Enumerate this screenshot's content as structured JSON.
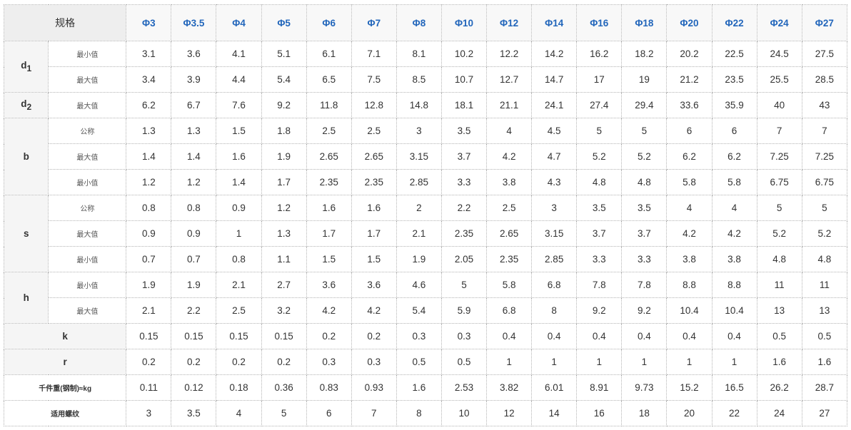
{
  "table": {
    "corner_label": "规格",
    "columns": [
      "Φ3",
      "Φ3.5",
      "Φ4",
      "Φ5",
      "Φ6",
      "Φ7",
      "Φ8",
      "Φ10",
      "Φ12",
      "Φ14",
      "Φ16",
      "Φ18",
      "Φ20",
      "Φ22",
      "Φ24",
      "Φ27"
    ],
    "groups": [
      {
        "param": "d",
        "sub": "1",
        "rows": [
          {
            "label": "最小值",
            "values": [
              "3.1",
              "3.6",
              "4.1",
              "5.1",
              "6.1",
              "7.1",
              "8.1",
              "10.2",
              "12.2",
              "14.2",
              "16.2",
              "18.2",
              "20.2",
              "22.5",
              "24.5",
              "27.5"
            ]
          },
          {
            "label": "最大值",
            "values": [
              "3.4",
              "3.9",
              "4.4",
              "5.4",
              "6.5",
              "7.5",
              "8.5",
              "10.7",
              "12.7",
              "14.7",
              "17",
              "19",
              "21.2",
              "23.5",
              "25.5",
              "28.5"
            ]
          }
        ]
      },
      {
        "param": "d",
        "sub": "2",
        "rows": [
          {
            "label": "最大值",
            "values": [
              "6.2",
              "6.7",
              "7.6",
              "9.2",
              "11.8",
              "12.8",
              "14.8",
              "18.1",
              "21.1",
              "24.1",
              "27.4",
              "29.4",
              "33.6",
              "35.9",
              "40",
              "43"
            ]
          }
        ]
      },
      {
        "param": "b",
        "sub": "",
        "rows": [
          {
            "label": "公称",
            "values": [
              "1.3",
              "1.3",
              "1.5",
              "1.8",
              "2.5",
              "2.5",
              "3",
              "3.5",
              "4",
              "4.5",
              "5",
              "5",
              "6",
              "6",
              "7",
              "7"
            ]
          },
          {
            "label": "最大值",
            "values": [
              "1.4",
              "1.4",
              "1.6",
              "1.9",
              "2.65",
              "2.65",
              "3.15",
              "3.7",
              "4.2",
              "4.7",
              "5.2",
              "5.2",
              "6.2",
              "6.2",
              "7.25",
              "7.25"
            ]
          },
          {
            "label": "最小值",
            "values": [
              "1.2",
              "1.2",
              "1.4",
              "1.7",
              "2.35",
              "2.35",
              "2.85",
              "3.3",
              "3.8",
              "4.3",
              "4.8",
              "4.8",
              "5.8",
              "5.8",
              "6.75",
              "6.75"
            ]
          }
        ]
      },
      {
        "param": "s",
        "sub": "",
        "rows": [
          {
            "label": "公称",
            "values": [
              "0.8",
              "0.8",
              "0.9",
              "1.2",
              "1.6",
              "1.6",
              "2",
              "2.2",
              "2.5",
              "3",
              "3.5",
              "3.5",
              "4",
              "4",
              "5",
              "5"
            ]
          },
          {
            "label": "最大值",
            "values": [
              "0.9",
              "0.9",
              "1",
              "1.3",
              "1.7",
              "1.7",
              "2.1",
              "2.35",
              "2.65",
              "3.15",
              "3.7",
              "3.7",
              "4.2",
              "4.2",
              "5.2",
              "5.2"
            ]
          },
          {
            "label": "最小值",
            "values": [
              "0.7",
              "0.7",
              "0.8",
              "1.1",
              "1.5",
              "1.5",
              "1.9",
              "2.05",
              "2.35",
              "2.85",
              "3.3",
              "3.3",
              "3.8",
              "3.8",
              "4.8",
              "4.8"
            ]
          }
        ]
      },
      {
        "param": "h",
        "sub": "",
        "rows": [
          {
            "label": "最小值",
            "values": [
              "1.9",
              "1.9",
              "2.1",
              "2.7",
              "3.6",
              "3.6",
              "4.6",
              "5",
              "5.8",
              "6.8",
              "7.8",
              "7.8",
              "8.8",
              "8.8",
              "11",
              "11"
            ]
          },
          {
            "label": "最大值",
            "values": [
              "2.1",
              "2.2",
              "2.5",
              "3.2",
              "4.2",
              "4.2",
              "5.4",
              "5.9",
              "6.8",
              "8",
              "9.2",
              "9.2",
              "10.4",
              "10.4",
              "13",
              "13"
            ]
          }
        ]
      }
    ],
    "single_rows": [
      {
        "name": "k",
        "label": "k",
        "bold_large": true,
        "values": [
          "0.15",
          "0.15",
          "0.15",
          "0.15",
          "0.2",
          "0.2",
          "0.3",
          "0.3",
          "0.4",
          "0.4",
          "0.4",
          "0.4",
          "0.4",
          "0.4",
          "0.5",
          "0.5"
        ]
      },
      {
        "name": "r",
        "label": "r",
        "bold_large": true,
        "values": [
          "0.2",
          "0.2",
          "0.2",
          "0.2",
          "0.3",
          "0.3",
          "0.5",
          "0.5",
          "1",
          "1",
          "1",
          "1",
          "1",
          "1",
          "1.6",
          "1.6"
        ]
      },
      {
        "name": "weight",
        "label": "千件重(钢制)≈kg",
        "bold_large": false,
        "values": [
          "0.11",
          "0.12",
          "0.18",
          "0.36",
          "0.83",
          "0.93",
          "1.6",
          "2.53",
          "3.82",
          "6.01",
          "8.91",
          "9.73",
          "15.2",
          "16.5",
          "26.2",
          "28.7"
        ]
      },
      {
        "name": "thread",
        "label": "适用螺纹",
        "bold_large": false,
        "values": [
          "3",
          "3.5",
          "4",
          "5",
          "6",
          "7",
          "8",
          "10",
          "12",
          "14",
          "16",
          "18",
          "20",
          "22",
          "24",
          "27"
        ]
      }
    ]
  }
}
